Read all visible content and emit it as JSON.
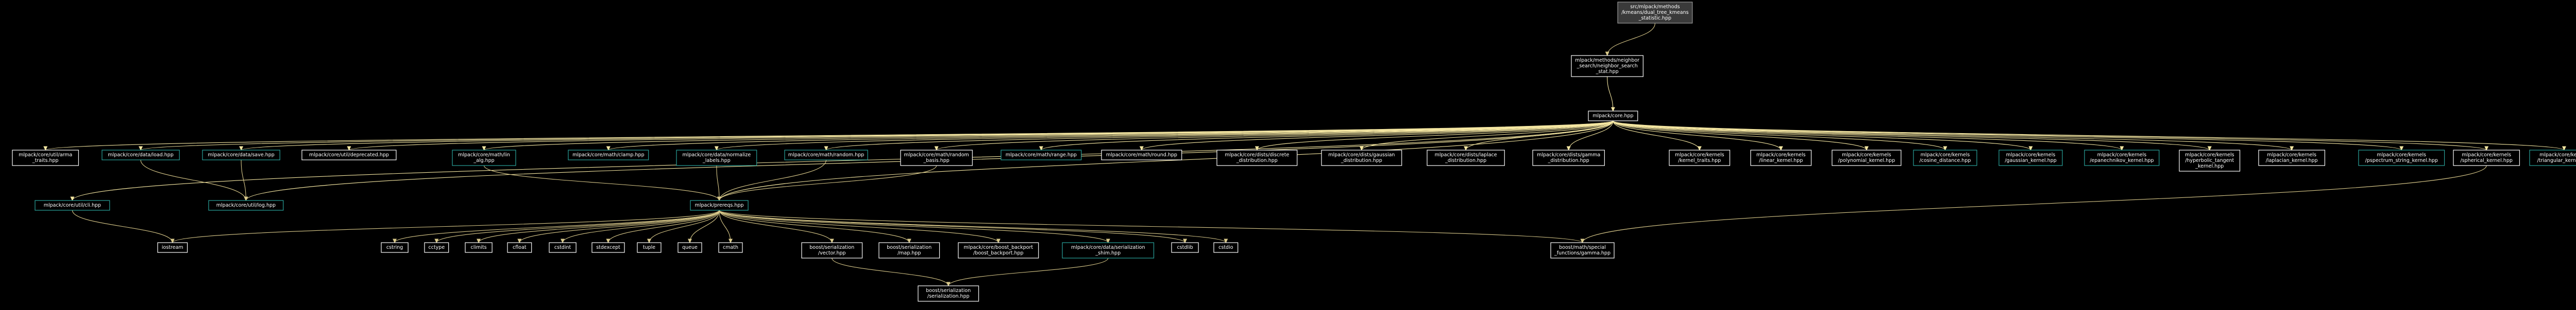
{
  "colors": {
    "background": "#000000",
    "node_fill": "#000000",
    "node_fill_root": "#3a3a3a",
    "node_text": "#ffffff",
    "border_default": "#ffffff",
    "border_linked": "#2aa39b",
    "border_root": "#9a9a9a",
    "edge_primary": "#f5e7a2",
    "edge_secondary": "#d9c98a"
  },
  "nodes": [
    {
      "id": "root",
      "lines": [
        "src/mlpack/methods",
        "/kmeans/dual_tree_kmeans",
        "_statistic.hpp"
      ],
      "style": "root"
    },
    {
      "id": "ns",
      "lines": [
        "mlpack/methods/neighbor",
        "_search/neighbor_search",
        "_stat.hpp"
      ],
      "style": "default"
    },
    {
      "id": "core",
      "lines": [
        "mlpack/core.hpp"
      ],
      "style": "default"
    },
    {
      "id": "arma_traits",
      "lines": [
        "mlpack/core/util/arma",
        "_traits.hpp"
      ],
      "style": "default"
    },
    {
      "id": "data_load",
      "lines": [
        "mlpack/core/data/load.hpp"
      ],
      "style": "linked"
    },
    {
      "id": "data_save",
      "lines": [
        "mlpack/core/data/save.hpp"
      ],
      "style": "linked"
    },
    {
      "id": "deprecated",
      "lines": [
        "mlpack/core/util/deprecated.hpp"
      ],
      "style": "default"
    },
    {
      "id": "lin_alg",
      "lines": [
        "mlpack/core/math/lin",
        "_alg.hpp"
      ],
      "style": "linked"
    },
    {
      "id": "clamp",
      "lines": [
        "mlpack/core/math/clamp.hpp"
      ],
      "style": "linked"
    },
    {
      "id": "normalize",
      "lines": [
        "mlpack/core/data/normalize",
        "_labels.hpp"
      ],
      "style": "linked"
    },
    {
      "id": "random",
      "lines": [
        "mlpack/core/math/random.hpp"
      ],
      "style": "linked"
    },
    {
      "id": "random_basis",
      "lines": [
        "mlpack/core/math/random",
        "_basis.hpp"
      ],
      "style": "default"
    },
    {
      "id": "range",
      "lines": [
        "mlpack/core/math/range.hpp"
      ],
      "style": "linked"
    },
    {
      "id": "round",
      "lines": [
        "mlpack/core/math/round.hpp"
      ],
      "style": "default"
    },
    {
      "id": "discrete",
      "lines": [
        "mlpack/core/dists/discrete",
        "_distribution.hpp"
      ],
      "style": "default"
    },
    {
      "id": "gaussian_d",
      "lines": [
        "mlpack/core/dists/gaussian",
        "_distribution.hpp"
      ],
      "style": "default"
    },
    {
      "id": "laplace_d",
      "lines": [
        "mlpack/core/dists/laplace",
        "_distribution.hpp"
      ],
      "style": "default"
    },
    {
      "id": "gamma_d",
      "lines": [
        "mlpack/core/dists/gamma",
        "_distribution.hpp"
      ],
      "style": "default"
    },
    {
      "id": "kernel_traits",
      "lines": [
        "mlpack/core/kernels",
        "/kernel_traits.hpp"
      ],
      "style": "default"
    },
    {
      "id": "linear_k",
      "lines": [
        "mlpack/core/kernels",
        "/linear_kernel.hpp"
      ],
      "style": "default"
    },
    {
      "id": "poly_k",
      "lines": [
        "mlpack/core/kernels",
        "/polynomial_kernel.hpp"
      ],
      "style": "default"
    },
    {
      "id": "cosine_d",
      "lines": [
        "mlpack/core/kernels",
        "/cosine_distance.hpp"
      ],
      "style": "linked"
    },
    {
      "id": "gauss_k",
      "lines": [
        "mlpack/core/kernels",
        "/gaussian_kernel.hpp"
      ],
      "style": "linked"
    },
    {
      "id": "epan_k",
      "lines": [
        "mlpack/core/kernels",
        "/epanechnikov_kernel.hpp"
      ],
      "style": "linked"
    },
    {
      "id": "hyptan_k",
      "lines": [
        "mlpack/core/kernels",
        "/hyperbolic_tangent",
        "_kernel.hpp"
      ],
      "style": "default"
    },
    {
      "id": "lapl_k",
      "lines": [
        "mlpack/core/kernels",
        "/laplacian_kernel.hpp"
      ],
      "style": "default"
    },
    {
      "id": "pspec_k",
      "lines": [
        "mlpack/core/kernels",
        "/pspectrum_string_kernel.hpp"
      ],
      "style": "linked"
    },
    {
      "id": "spher_k",
      "lines": [
        "mlpack/core/kernels",
        "/spherical_kernel.hpp"
      ],
      "style": "default"
    },
    {
      "id": "tri_k",
      "lines": [
        "mlpack/core/kernels",
        "/triangular_kernel.hpp"
      ],
      "style": "linked"
    },
    {
      "id": "cli",
      "lines": [
        "mlpack/core/util/cli.hpp"
      ],
      "style": "linked"
    },
    {
      "id": "log",
      "lines": [
        "mlpack/core/util/log.hpp"
      ],
      "style": "linked"
    },
    {
      "id": "prereqs",
      "lines": [
        "mlpack/prereqs.hpp"
      ],
      "style": "linked"
    },
    {
      "id": "iostream",
      "lines": [
        "iostream"
      ],
      "style": "default"
    },
    {
      "id": "cstring",
      "lines": [
        "cstring"
      ],
      "style": "default"
    },
    {
      "id": "cctype",
      "lines": [
        "cctype"
      ],
      "style": "default"
    },
    {
      "id": "climits",
      "lines": [
        "climits"
      ],
      "style": "default"
    },
    {
      "id": "cfloat",
      "lines": [
        "cfloat"
      ],
      "style": "default"
    },
    {
      "id": "cstdint",
      "lines": [
        "cstdint"
      ],
      "style": "default"
    },
    {
      "id": "stdexcept",
      "lines": [
        "stdexcept"
      ],
      "style": "default"
    },
    {
      "id": "tuple",
      "lines": [
        "tuple"
      ],
      "style": "default"
    },
    {
      "id": "queue",
      "lines": [
        "queue"
      ],
      "style": "default"
    },
    {
      "id": "cmath",
      "lines": [
        "cmath"
      ],
      "style": "default"
    },
    {
      "id": "bs_vector",
      "lines": [
        "boost/serialization",
        "/vector.hpp"
      ],
      "style": "default"
    },
    {
      "id": "bs_map",
      "lines": [
        "boost/serialization",
        "/map.hpp"
      ],
      "style": "default"
    },
    {
      "id": "boost_backport",
      "lines": [
        "mlpack/core/boost_backport",
        "/boost_backport.hpp"
      ],
      "style": "default"
    },
    {
      "id": "shim",
      "lines": [
        "mlpack/core/data/serialization",
        "_shim.hpp"
      ],
      "style": "linked"
    },
    {
      "id": "cstdlib",
      "lines": [
        "cstdlib"
      ],
      "style": "default"
    },
    {
      "id": "cstdio",
      "lines": [
        "cstdio"
      ],
      "style": "default"
    },
    {
      "id": "gamma_fn",
      "lines": [
        "boost/math/special",
        "_functions/gamma.hpp"
      ],
      "style": "default"
    },
    {
      "id": "bs_serial",
      "lines": [
        "boost/serialization",
        "/serialization.hpp"
      ],
      "style": "default"
    }
  ],
  "edges": [
    [
      "root",
      "ns"
    ],
    [
      "ns",
      "core"
    ],
    [
      "core",
      "arma_traits"
    ],
    [
      "core",
      "data_load"
    ],
    [
      "core",
      "data_save"
    ],
    [
      "core",
      "deprecated"
    ],
    [
      "core",
      "lin_alg"
    ],
    [
      "core",
      "clamp"
    ],
    [
      "core",
      "normalize"
    ],
    [
      "core",
      "random"
    ],
    [
      "core",
      "random_basis"
    ],
    [
      "core",
      "range"
    ],
    [
      "core",
      "round"
    ],
    [
      "core",
      "discrete"
    ],
    [
      "core",
      "gaussian_d"
    ],
    [
      "core",
      "laplace_d"
    ],
    [
      "core",
      "gamma_d"
    ],
    [
      "core",
      "kernel_traits"
    ],
    [
      "core",
      "linear_k"
    ],
    [
      "core",
      "poly_k"
    ],
    [
      "core",
      "cosine_d"
    ],
    [
      "core",
      "gauss_k"
    ],
    [
      "core",
      "epan_k"
    ],
    [
      "core",
      "hyptan_k"
    ],
    [
      "core",
      "lapl_k"
    ],
    [
      "core",
      "pspec_k"
    ],
    [
      "core",
      "spher_k"
    ],
    [
      "core",
      "tri_k"
    ],
    [
      "core",
      "cli"
    ],
    [
      "core",
      "log"
    ],
    [
      "core",
      "prereqs"
    ],
    [
      "data_load",
      "log"
    ],
    [
      "data_save",
      "log"
    ],
    [
      "cli",
      "iostream"
    ],
    [
      "lin_alg",
      "prereqs"
    ],
    [
      "normalize",
      "prereqs"
    ],
    [
      "random",
      "prereqs"
    ],
    [
      "random_basis",
      "prereqs"
    ],
    [
      "prereqs",
      "iostream"
    ],
    [
      "prereqs",
      "cstring"
    ],
    [
      "prereqs",
      "cctype"
    ],
    [
      "prereqs",
      "climits"
    ],
    [
      "prereqs",
      "cfloat"
    ],
    [
      "prereqs",
      "cstdint"
    ],
    [
      "prereqs",
      "stdexcept"
    ],
    [
      "prereqs",
      "tuple"
    ],
    [
      "prereqs",
      "queue"
    ],
    [
      "prereqs",
      "cmath"
    ],
    [
      "prereqs",
      "bs_vector"
    ],
    [
      "prereqs",
      "bs_map"
    ],
    [
      "prereqs",
      "boost_backport"
    ],
    [
      "prereqs",
      "shim"
    ],
    [
      "prereqs",
      "cstdlib"
    ],
    [
      "prereqs",
      "cstdio"
    ],
    [
      "prereqs",
      "gamma_fn"
    ],
    [
      "shim",
      "bs_serial"
    ],
    [
      "bs_vector",
      "bs_serial"
    ],
    [
      "spher_k",
      "gamma_fn"
    ]
  ]
}
